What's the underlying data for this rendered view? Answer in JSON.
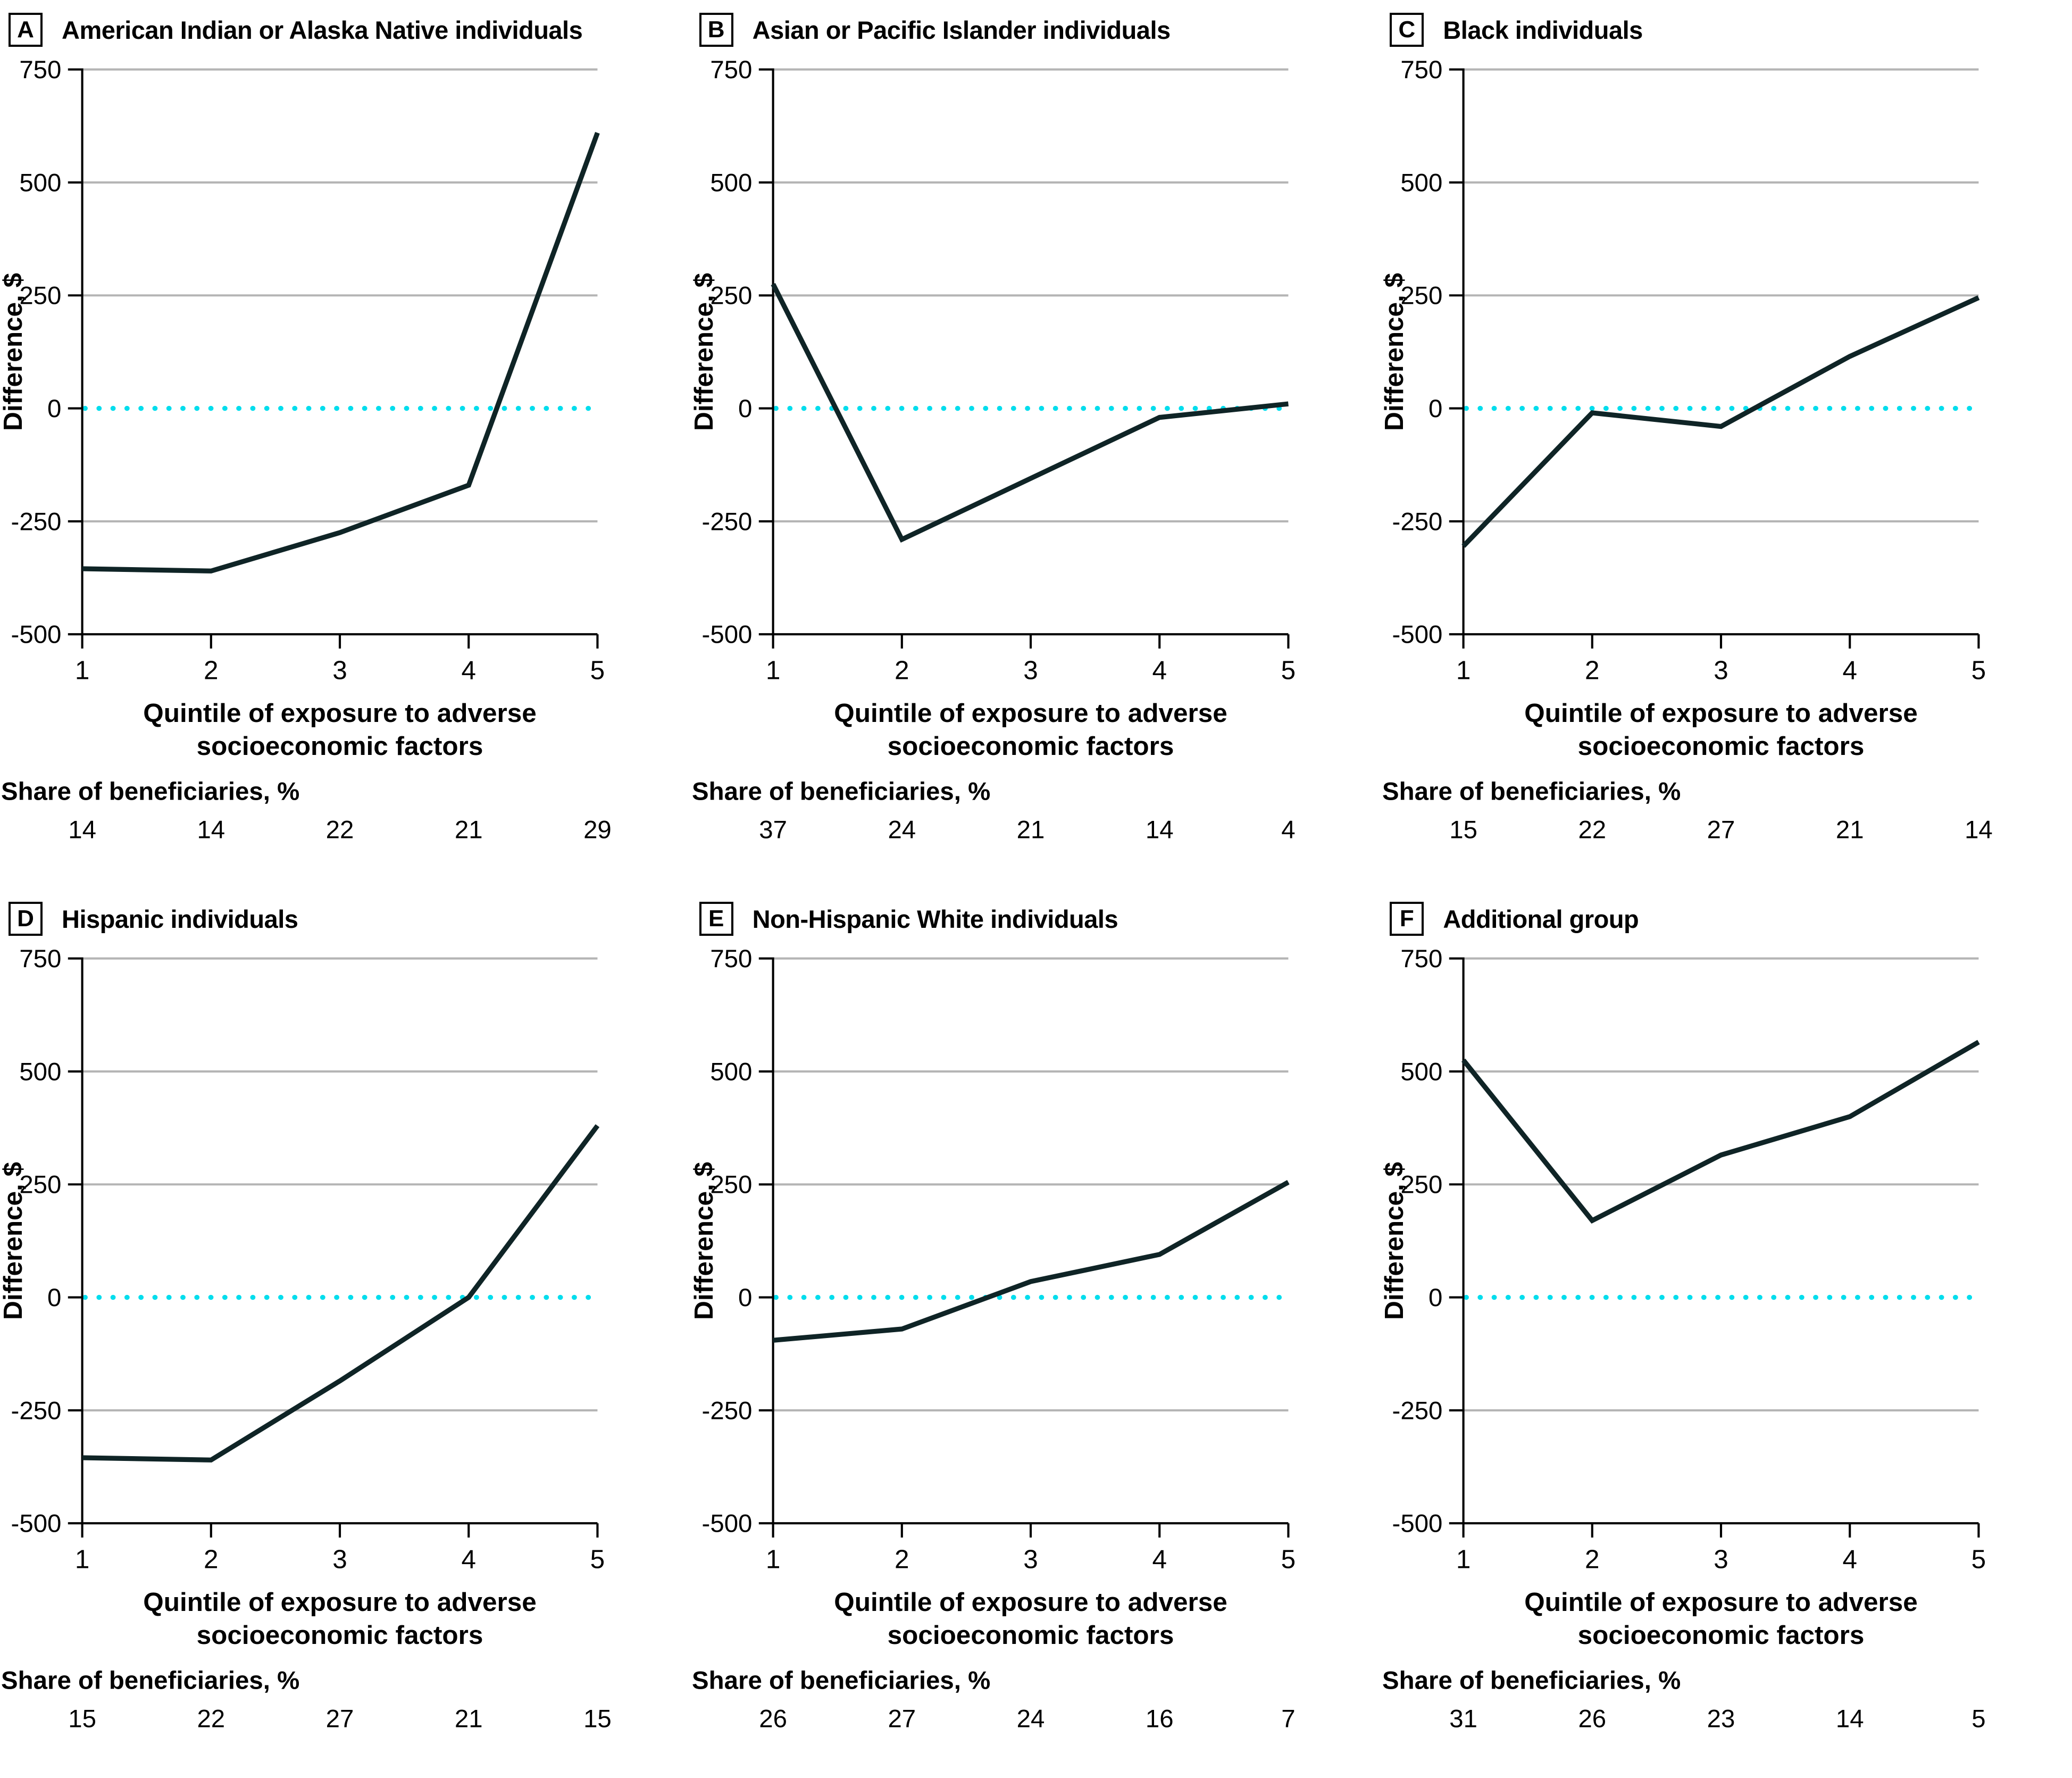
{
  "figure": {
    "y_axis_label": "Difference, $",
    "x_axis_title_line1": "Quintile of exposure to adverse",
    "x_axis_title_line2": "socioeconomic factors",
    "share_label": "Share of beneficiaries, %",
    "y_ticks": [
      "750",
      "500",
      "250",
      "0",
      "-250",
      "-500"
    ],
    "x_ticks": [
      "1",
      "2",
      "3",
      "4",
      "5"
    ],
    "colors": {
      "line": "#0f2426",
      "zero_line": "#00dded",
      "gridline": "#b5b5b5",
      "axis": "#000000"
    }
  },
  "chart_data": [
    {
      "type": "line",
      "label": "A",
      "title": "American Indian or Alaska Native individuals",
      "x": [
        1,
        2,
        3,
        4,
        5
      ],
      "values": [
        -355,
        -360,
        -275,
        -170,
        610
      ],
      "share_of_beneficiaries": [
        14,
        14,
        22,
        21,
        29
      ],
      "xlabel": "Quintile of exposure to adverse socioeconomic factors",
      "ylabel": "Difference, $",
      "ylim": [
        -500,
        750
      ],
      "zero_reference_line": 0,
      "grid": true,
      "legend": "none"
    },
    {
      "type": "line",
      "label": "B",
      "title": "Asian or Pacific Islander individuals",
      "x": [
        1,
        2,
        3,
        4,
        5
      ],
      "values": [
        275,
        -290,
        -155,
        -20,
        10
      ],
      "share_of_beneficiaries": [
        37,
        24,
        21,
        14,
        4
      ],
      "xlabel": "Quintile of exposure to adverse socioeconomic factors",
      "ylabel": "Difference, $",
      "ylim": [
        -500,
        750
      ],
      "zero_reference_line": 0,
      "grid": true,
      "legend": "none"
    },
    {
      "type": "line",
      "label": "C",
      "title": "Black individuals",
      "x": [
        1,
        2,
        3,
        4,
        5
      ],
      "values": [
        -305,
        -10,
        -40,
        115,
        245
      ],
      "share_of_beneficiaries": [
        15,
        22,
        27,
        21,
        14
      ],
      "xlabel": "Quintile of exposure to adverse socioeconomic factors",
      "ylabel": "Difference, $",
      "ylim": [
        -500,
        750
      ],
      "zero_reference_line": 0,
      "grid": true,
      "legend": "none"
    },
    {
      "type": "line",
      "label": "D",
      "title": "Hispanic individuals",
      "x": [
        1,
        2,
        3,
        4,
        5
      ],
      "values": [
        -355,
        -360,
        -185,
        0,
        380
      ],
      "share_of_beneficiaries": [
        15,
        22,
        27,
        21,
        15
      ],
      "xlabel": "Quintile of exposure to adverse socioeconomic factors",
      "ylabel": "Difference, $",
      "ylim": [
        -500,
        750
      ],
      "zero_reference_line": 0,
      "grid": true,
      "legend": "none"
    },
    {
      "type": "line",
      "label": "E",
      "title": "Non-Hispanic White individuals",
      "x": [
        1,
        2,
        3,
        4,
        5
      ],
      "values": [
        -95,
        -70,
        35,
        95,
        255
      ],
      "share_of_beneficiaries": [
        26,
        27,
        24,
        16,
        7
      ],
      "xlabel": "Quintile of exposure to adverse socioeconomic factors",
      "ylabel": "Difference, $",
      "ylim": [
        -500,
        750
      ],
      "zero_reference_line": 0,
      "grid": true,
      "legend": "none"
    },
    {
      "type": "line",
      "label": "F",
      "title": "Additional group",
      "x": [
        1,
        2,
        3,
        4,
        5
      ],
      "values": [
        525,
        170,
        315,
        400,
        565
      ],
      "share_of_beneficiaries": [
        31,
        26,
        23,
        14,
        5
      ],
      "xlabel": "Quintile of exposure to adverse socioeconomic factors",
      "ylabel": "Difference, $",
      "ylim": [
        -500,
        750
      ],
      "zero_reference_line": 0,
      "grid": true,
      "legend": "none"
    }
  ]
}
